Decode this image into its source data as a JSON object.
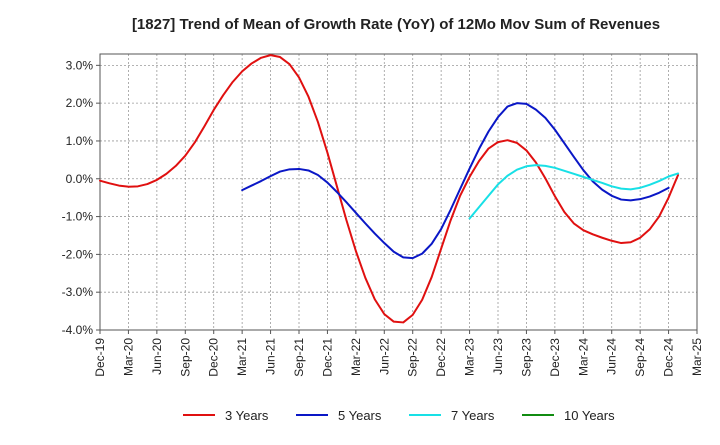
{
  "chart_data": {
    "type": "line",
    "title": "[1827]  Trend of Mean of Growth Rate (YoY) of 12Mo Mov Sum of Revenues",
    "xlabel": "",
    "ylabel": "",
    "x_start": "Dec-19",
    "x_end": "Mar-25",
    "x_ticks": [
      "Dec-19",
      "Mar-20",
      "Jun-20",
      "Sep-20",
      "Dec-20",
      "Mar-21",
      "Jun-21",
      "Sep-21",
      "Dec-21",
      "Mar-22",
      "Jun-22",
      "Sep-22",
      "Dec-22",
      "Mar-23",
      "Jun-23",
      "Sep-23",
      "Dec-23",
      "Mar-24",
      "Jun-24",
      "Sep-24",
      "Dec-24",
      "Mar-25"
    ],
    "y_ticks": [
      "3.0%",
      "2.0%",
      "1.0%",
      "0.0%",
      "-1.0%",
      "-2.0%",
      "-3.0%",
      "-4.0%"
    ],
    "ylim": [
      -4.0,
      3.3
    ],
    "grid": true,
    "legend_position": "bottom",
    "series": [
      {
        "name": "3 Years",
        "color": "#e01010",
        "start_month_index": 0,
        "values": [
          -0.05,
          -0.12,
          -0.18,
          -0.21,
          -0.2,
          -0.14,
          -0.03,
          0.13,
          0.34,
          0.61,
          0.96,
          1.38,
          1.82,
          2.21,
          2.56,
          2.84,
          3.05,
          3.2,
          3.27,
          3.22,
          3.03,
          2.68,
          2.17,
          1.5,
          0.69,
          -0.2,
          -1.09,
          -1.91,
          -2.62,
          -3.19,
          -3.58,
          -3.78,
          -3.8,
          -3.6,
          -3.2,
          -2.6,
          -1.85,
          -1.1,
          -0.45,
          0.05,
          0.47,
          0.8,
          0.97,
          1.02,
          0.95,
          0.75,
          0.43,
          0.01,
          -0.46,
          -0.88,
          -1.18,
          -1.36,
          -1.47,
          -1.56,
          -1.64,
          -1.7,
          -1.68,
          -1.56,
          -1.34,
          -1.0,
          -0.5,
          0.1
        ]
      },
      {
        "name": "5 Years",
        "color": "#0a17c6",
        "start_month_index": 15,
        "values": [
          -0.3,
          -0.18,
          -0.06,
          0.07,
          0.19,
          0.25,
          0.26,
          0.22,
          0.1,
          -0.1,
          -0.35,
          -0.62,
          -0.9,
          -1.18,
          -1.45,
          -1.7,
          -1.93,
          -2.08,
          -2.1,
          -1.98,
          -1.72,
          -1.33,
          -0.82,
          -0.27,
          0.27,
          0.79,
          1.25,
          1.63,
          1.91,
          2.0,
          1.98,
          1.83,
          1.61,
          1.3,
          0.94,
          0.58,
          0.23,
          -0.07,
          -0.29,
          -0.45,
          -0.55,
          -0.57,
          -0.54,
          -0.47,
          -0.37,
          -0.24
        ]
      },
      {
        "name": "7 Years",
        "color": "#18e0e6",
        "start_month_index": 39,
        "values": [
          -1.05,
          -0.75,
          -0.45,
          -0.15,
          0.08,
          0.24,
          0.33,
          0.36,
          0.34,
          0.29,
          0.21,
          0.13,
          0.05,
          -0.03,
          -0.11,
          -0.2,
          -0.26,
          -0.28,
          -0.24,
          -0.16,
          -0.06,
          0.06,
          0.14
        ]
      },
      {
        "name": "10 Years",
        "color": "#118c11",
        "start_month_index": 0,
        "values": []
      }
    ]
  }
}
